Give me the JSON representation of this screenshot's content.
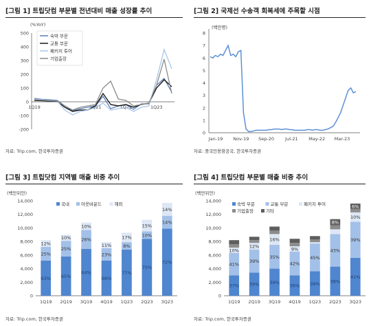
{
  "fig1": {
    "title": "[그림 1] 트립닷컴 부문별 전년대비 매출 성장률 추이",
    "source": "자료: Trip.com, 한국투자증권",
    "unit": "(%YoY)",
    "chart_data": {
      "type": "line",
      "x": [
        "1Q19",
        "2Q19",
        "3Q19",
        "4Q19",
        "1Q20",
        "2Q20",
        "3Q20",
        "4Q20",
        "1Q21",
        "2Q21",
        "3Q21",
        "4Q21",
        "1Q22",
        "2Q22",
        "3Q22",
        "4Q22",
        "1Q23",
        "2Q23",
        "3Q23"
      ],
      "xticks": [
        "1Q19",
        "1Q21",
        "1Q22",
        "1Q23"
      ],
      "ylim": [
        -200,
        500
      ],
      "yticks": [
        500,
        400,
        300,
        200,
        100,
        0,
        -100,
        -200
      ],
      "series": [
        {
          "name": "숙박 부문",
          "color": "#5b7fb8",
          "values": [
            25,
            18,
            15,
            10,
            -30,
            -65,
            -50,
            -40,
            -30,
            40,
            -50,
            -30,
            -20,
            -55,
            -15,
            -15,
            120,
            170,
            70
          ]
        },
        {
          "name": "교통 부문",
          "color": "#1a1a1a",
          "values": [
            10,
            8,
            5,
            3,
            -40,
            -70,
            -60,
            -60,
            -30,
            60,
            -20,
            -30,
            -20,
            -40,
            -20,
            -10,
            100,
            160,
            110
          ]
        },
        {
          "name": "패키지 투어",
          "color": "#a8c6e8",
          "values": [
            20,
            15,
            10,
            5,
            -60,
            -95,
            -70,
            -60,
            -40,
            -10,
            -60,
            -50,
            -40,
            -70,
            -40,
            -30,
            160,
            380,
            240
          ]
        },
        {
          "name": "기업출장",
          "color": "#8a8a8a",
          "values": [
            15,
            12,
            8,
            5,
            -30,
            -60,
            -40,
            -30,
            -20,
            100,
            150,
            20,
            10,
            -30,
            -20,
            -10,
            120,
            310,
            60
          ]
        }
      ]
    }
  },
  "fig2": {
    "title": "[그림 2] 국제선 수송객 회복세에 주목할 시점",
    "source": "자료: 중국민용항공국, 한국투자증권",
    "unit": "(백만명)",
    "chart_data": {
      "type": "line",
      "xticks": [
        "Jan-19",
        "Nov-19",
        "Sep-20",
        "Jul-21",
        "May-22",
        "Mar-23"
      ],
      "ylim": [
        0,
        8
      ],
      "yticks": [
        8,
        7,
        6,
        5,
        4,
        3,
        2,
        1,
        0
      ],
      "series": [
        {
          "name": "",
          "color": "#5b8fd6",
          "values": [
            6.1,
            6.0,
            6.2,
            6.1,
            6.3,
            6.2,
            6.6,
            7.0,
            6.2,
            6.3,
            6.1,
            6.5,
            6.6,
            1.6,
            0.3,
            0.1,
            0.1,
            0.15,
            0.2,
            0.2,
            0.2,
            0.2,
            0.2,
            0.25,
            0.25,
            0.3,
            0.3,
            0.3,
            0.25,
            0.3,
            0.3,
            0.25,
            0.25,
            0.2,
            0.2,
            0.2,
            0.2,
            0.2,
            0.25,
            0.25,
            0.2,
            0.25,
            0.25,
            0.2,
            0.2,
            0.25,
            0.3,
            0.4,
            0.5,
            0.8,
            1.2,
            1.6,
            2.2,
            2.8,
            3.4,
            3.6,
            3.2,
            3.3
          ]
        }
      ]
    }
  },
  "fig3": {
    "title": "[그림 3] 트립닷컴 지역별 매출 비중 추이",
    "source": "자료: Trip.com, 한국투자증권",
    "unit": "(백만위안)",
    "chart_data": {
      "type": "bar",
      "categories": [
        "1Q19",
        "2Q19",
        "3Q19",
        "4Q19",
        "1Q23",
        "2Q23",
        "3Q23"
      ],
      "ylim": [
        0,
        14000
      ],
      "yticks": [
        14000,
        12000,
        10000,
        8000,
        6000,
        4000,
        2000,
        0
      ],
      "series": [
        {
          "name": "국내",
          "color": "#4f86cf",
          "values": [
            5200,
            5800,
            6900,
            5200,
            6800,
            8400,
            9900
          ],
          "labels": [
            "63%",
            "65%",
            "64%",
            "66%",
            "77%",
            "75%",
            "72%"
          ]
        },
        {
          "name": "아웃바운드",
          "color": "#a3c0e8",
          "values": [
            2000,
            2300,
            2800,
            1800,
            1100,
            1100,
            1900
          ],
          "labels": [
            "25%",
            "25%",
            "26%",
            "23%",
            "8%",
            "10%",
            "14%"
          ]
        },
        {
          "name": "해외",
          "color": "#dde7f5",
          "values": [
            1000,
            900,
            1100,
            900,
            1400,
            1700,
            1900
          ],
          "labels": [
            "12%",
            "10%",
            "10%",
            "11%",
            "17%",
            "15%",
            "14%"
          ]
        }
      ]
    }
  },
  "fig4": {
    "title": "[그림 4] 트립닷컴 부문별 매출 비중 추이",
    "source": "자료: Trip.com, 한국투자증권",
    "unit": "(백만위안)",
    "chart_data": {
      "type": "bar",
      "categories": [
        "1Q19",
        "2Q19",
        "3Q19",
        "4Q19",
        "1Q23",
        "2Q23",
        "3Q23"
      ],
      "ylim": [
        0,
        14000
      ],
      "yticks": [
        14000,
        12000,
        10000,
        8000,
        6000,
        4000,
        2000,
        0
      ],
      "series": [
        {
          "name": "숙박 부문",
          "color": "#4f86cf",
          "values": [
            3000,
            3400,
            4000,
            3000,
            3600,
            4300,
            5600
          ],
          "labels": [
            "37%",
            "39%",
            "39%",
            "36%",
            "39%",
            "38%",
            "41%"
          ]
        },
        {
          "name": "교통 부문",
          "color": "#a3c0e8",
          "values": [
            3300,
            3400,
            3500,
            3500,
            4100,
            4800,
            5300
          ],
          "labels": [
            "41%",
            "39%",
            "35%",
            "42%",
            "45%",
            "43%",
            "39%"
          ]
        },
        {
          "name": "패키지 투어",
          "color": "#dde7f5",
          "values": [
            800,
            1000,
            1600,
            800,
            200,
            700,
            1400
          ],
          "labels": [
            "10%",
            "12%",
            "16%",
            "9%",
            "2%",
            "6%",
            "10%"
          ]
        },
        {
          "name": "기업출장",
          "color": "#8c8c8c",
          "values": [
            500,
            400,
            500,
            500,
            400,
            600,
            500
          ],
          "labels": [
            "5%",
            "5%",
            "5%",
            "6%",
            "5%",
            "5%",
            "4%"
          ]
        },
        {
          "name": "기타",
          "color": "#5e5e5e",
          "values": [
            600,
            500,
            600,
            600,
            500,
            900,
            800
          ],
          "labels": [
            "7%",
            "6%",
            "6%",
            "7%",
            "6%",
            "8%",
            "6%"
          ]
        }
      ]
    }
  }
}
